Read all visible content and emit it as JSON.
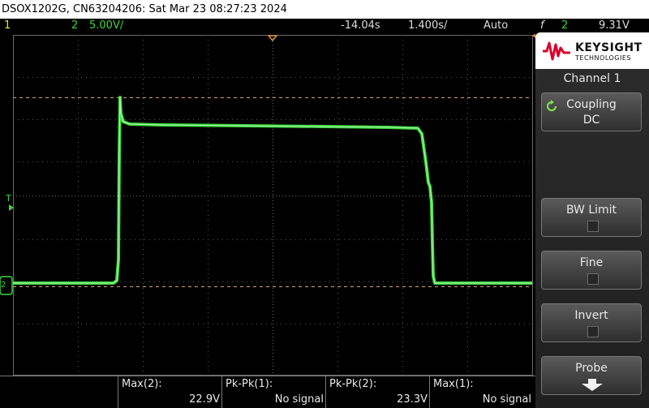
{
  "titlebar": {
    "text": "DSOX1202G, CN63204206: Sat Mar 23 08:27:23 2024"
  },
  "status": {
    "ch1_number": "1",
    "ch2_number": "2",
    "ch2_scale": "5.00V/",
    "time_position": "-14.04s",
    "time_scale": "1.400s/",
    "trigger_mode": "Auto",
    "trigger_symbol": "f",
    "trigger_source": "2",
    "trigger_level": "9.31V"
  },
  "brand": {
    "name": "KEYSIGHT",
    "subtitle": "TECHNOLOGIES"
  },
  "panel": {
    "title": "Channel 1",
    "softkeys": [
      {
        "label": "Coupling",
        "value": "DC"
      },
      {
        "label": "BW Limit",
        "checked": false
      },
      {
        "label": "Fine",
        "checked": false
      },
      {
        "label": "Invert",
        "checked": false
      },
      {
        "label": "Probe",
        "icon": "down-arrow-icon"
      }
    ]
  },
  "graticule": {
    "trigger_label": "T",
    "ground_label": "2"
  },
  "measurements": [
    {
      "label": "Max(2):",
      "value": "22.9V"
    },
    {
      "label": "Pk-Pk(1):",
      "value": "No signal"
    },
    {
      "label": "Pk-Pk(2):",
      "value": "23.3V"
    },
    {
      "label": "Max(1):",
      "value": "No signal"
    }
  ],
  "colors": {
    "channel1": "#e8e83a",
    "channel2": "#3bd83b",
    "cursor": "#d9a070",
    "grid": "#6a6a6a"
  }
}
